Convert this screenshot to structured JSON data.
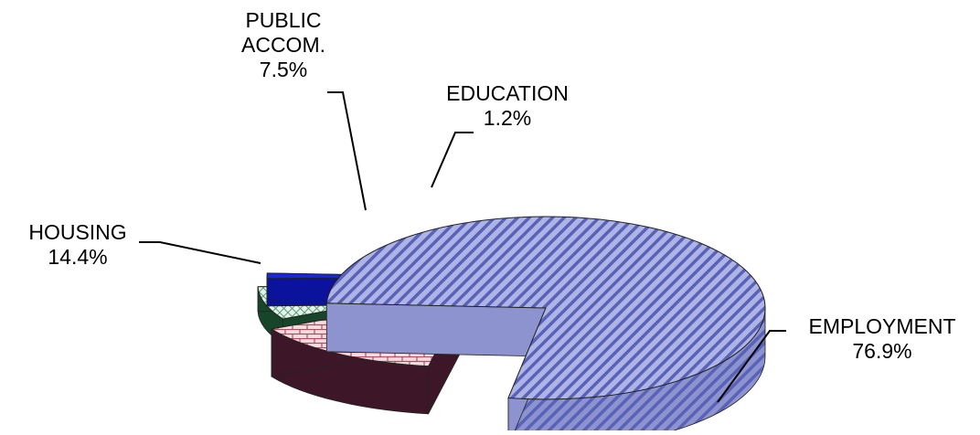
{
  "chart_data": {
    "type": "pie",
    "style": "3d-exploded",
    "title": "",
    "legend": "none",
    "slices": [
      {
        "key": "employment",
        "name": "EMPLOYMENT",
        "value": 76.9,
        "value_label": "76.9%",
        "top_color": "#aeb4e6",
        "side_color": "#8c93cf",
        "pattern_fg": "#5a62b8",
        "pattern": "diagonal-stripes"
      },
      {
        "key": "housing",
        "name": "HOUSING",
        "value": 14.4,
        "value_label": "14.4%",
        "top_color": "#f4dde2",
        "side_color": "#3d1728",
        "pattern_fg": "#b0505f",
        "pattern": "brick"
      },
      {
        "key": "public",
        "name": "PUBLIC ACCOM.",
        "name_lines": [
          "PUBLIC",
          "ACCOM."
        ],
        "value": 7.5,
        "value_label": "7.5%",
        "top_color": "#e3f3ea",
        "side_color": "#17452a",
        "pattern_fg": "#5f9e7a",
        "pattern": "diamond-grid"
      },
      {
        "key": "education",
        "name": "EDUCATION",
        "value": 1.2,
        "value_label": "1.2%",
        "top_color": "#1726e0",
        "side_color": "#0b139c",
        "pattern_fg": "#1726e0",
        "pattern": "solid"
      }
    ]
  }
}
